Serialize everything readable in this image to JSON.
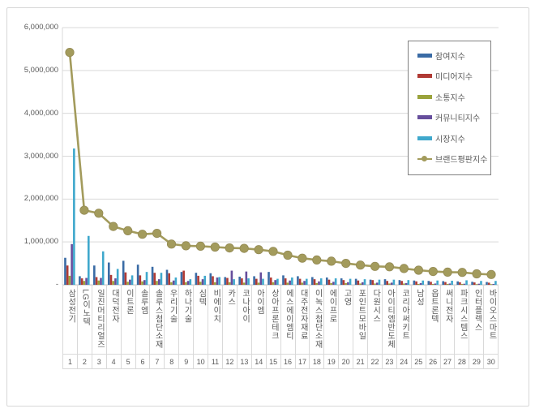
{
  "window": {
    "background": "#ffffff",
    "card_border_color": "#d7d7d7",
    "gridline_color": "#d9d9d9",
    "axis_text_color": "#595959",
    "legend_border_color": "#808080"
  },
  "chart_data": {
    "type": "bar",
    "subtype": "grouped-bars-with-line-overlay",
    "title": "",
    "xlabel": "",
    "ylabel": "",
    "ylim": [
      0,
      6000000
    ],
    "grid": true,
    "legend_position": "top-right",
    "ytick_values": [
      0,
      1000000,
      2000000,
      3000000,
      4000000,
      5000000,
      6000000
    ],
    "ytick_labels": [
      "-",
      "1,000,000",
      "2,000,000",
      "3,000,000",
      "4,000,000",
      "5,000,000",
      "6,000,000"
    ],
    "categories": [
      "삼성전기",
      "LG이노텍",
      "일진머티리얼즈",
      "대덕전자",
      "이트론",
      "솔루엠",
      "솔루스첨단소재",
      "우리기술",
      "하나기술",
      "심텍",
      "비에이치",
      "카스",
      "코나아이",
      "아이엠",
      "상아프론테크",
      "에스에이엠티",
      "대주전자재료",
      "이녹스첨단소재",
      "에이프로",
      "고영",
      "포인트모바일",
      "다원시스",
      "아이티엠반도체",
      "코리아써키트",
      "남성",
      "옵트론텍",
      "써니전자",
      "파크시스템스",
      "인터플렉스",
      "바이오스마트"
    ],
    "ranks": [
      "1",
      "2",
      "3",
      "4",
      "5",
      "6",
      "7",
      "8",
      "9",
      "10",
      "11",
      "12",
      "13",
      "14",
      "15",
      "16",
      "17",
      "18",
      "19",
      "20",
      "21",
      "22",
      "23",
      "24",
      "25",
      "26",
      "27",
      "28",
      "29",
      "30"
    ],
    "series": [
      {
        "name": "참여지수",
        "type": "bar",
        "color": "#3A6BA5",
        "values": [
          630000,
          200000,
          450000,
          520000,
          560000,
          470000,
          420000,
          350000,
          300000,
          280000,
          270000,
          180000,
          190000,
          200000,
          300000,
          220000,
          200000,
          180000,
          170000,
          150000,
          140000,
          120000,
          130000,
          110000,
          100000,
          90000,
          85000,
          80000,
          70000,
          65000
        ]
      },
      {
        "name": "미디어지수",
        "type": "bar",
        "color": "#B03A34",
        "values": [
          450000,
          150000,
          180000,
          230000,
          290000,
          220000,
          280000,
          270000,
          330000,
          210000,
          200000,
          160000,
          150000,
          140000,
          170000,
          150000,
          140000,
          130000,
          120000,
          110000,
          100000,
          110000,
          90000,
          90000,
          80000,
          70000,
          65000,
          60000,
          55000,
          50000
        ]
      },
      {
        "name": "소통지수",
        "type": "bar",
        "color": "#9AA33B",
        "values": [
          210000,
          90000,
          100000,
          90000,
          70000,
          80000,
          90000,
          60000,
          60000,
          70000,
          60000,
          60000,
          50000,
          50000,
          60000,
          50000,
          50000,
          40000,
          40000,
          40000,
          30000,
          30000,
          30000,
          30000,
          20000,
          20000,
          20000,
          20000,
          15000,
          15000
        ]
      },
      {
        "name": "커뮤니티지수",
        "type": "bar",
        "color": "#664E9C",
        "values": [
          950000,
          160000,
          160000,
          150000,
          120000,
          110000,
          130000,
          100000,
          90000,
          130000,
          170000,
          330000,
          310000,
          290000,
          110000,
          100000,
          90000,
          80000,
          70000,
          60000,
          60000,
          50000,
          50000,
          40000,
          40000,
          30000,
          30000,
          25000,
          25000,
          20000
        ]
      },
      {
        "name": "시장지수",
        "type": "bar",
        "color": "#3FA8CC",
        "values": [
          3180000,
          1140000,
          780000,
          370000,
          220000,
          300000,
          280000,
          170000,
          130000,
          210000,
          180000,
          130000,
          150000,
          140000,
          140000,
          170000,
          140000,
          150000,
          150000,
          140000,
          130000,
          120000,
          120000,
          110000,
          100000,
          100000,
          95000,
          105000,
          90000,
          90000
        ]
      },
      {
        "name": "브랜드평판지수",
        "type": "line",
        "color": "#A39B5C",
        "marker": "circle",
        "values": [
          5420000,
          1740000,
          1670000,
          1360000,
          1260000,
          1180000,
          1200000,
          950000,
          910000,
          900000,
          880000,
          860000,
          850000,
          820000,
          780000,
          690000,
          620000,
          580000,
          550000,
          500000,
          460000,
          430000,
          420000,
          380000,
          340000,
          310000,
          295000,
          290000,
          255000,
          240000
        ]
      }
    ]
  }
}
